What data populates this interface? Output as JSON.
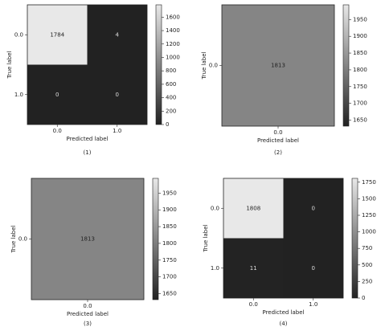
{
  "chart_data": [
    {
      "type": "heatmap",
      "caption": "(1)",
      "x_label": "Predicted label",
      "y_label": "True label",
      "x_categories": [
        "0.0",
        "1.0"
      ],
      "y_categories": [
        "0.0",
        "1.0"
      ],
      "values": [
        [
          1784,
          4
        ],
        [
          0,
          0
        ]
      ],
      "colorbar_lim": [
        0,
        1784
      ],
      "colorbar_ticks": [
        0,
        200,
        400,
        600,
        800,
        1000,
        1200,
        1400,
        1600
      ],
      "cmap": [
        "#222222",
        "#e8e8e8"
      ]
    },
    {
      "type": "heatmap",
      "caption": "(2)",
      "x_label": "Predicted label",
      "y_label": "True label",
      "x_categories": [
        "0.0"
      ],
      "y_categories": [
        "0.0"
      ],
      "values": [
        [
          1813
        ]
      ],
      "colorbar_lim": [
        1632,
        1994
      ],
      "colorbar_ticks": [
        1650,
        1700,
        1750,
        1800,
        1850,
        1900,
        1950
      ],
      "cmap": [
        "#222222",
        "#e8e8e8"
      ]
    },
    {
      "type": "heatmap",
      "caption": "(3)",
      "x_label": "Predicted label",
      "y_label": "True label",
      "x_categories": [
        "0.0"
      ],
      "y_categories": [
        "0.0"
      ],
      "values": [
        [
          1813
        ]
      ],
      "colorbar_lim": [
        1632,
        1994
      ],
      "colorbar_ticks": [
        1650,
        1700,
        1750,
        1800,
        1850,
        1900,
        1950
      ],
      "cmap": [
        "#222222",
        "#e8e8e8"
      ]
    },
    {
      "type": "heatmap",
      "caption": "(4)",
      "x_label": "Predicted label",
      "y_label": "True label",
      "x_categories": [
        "0.0",
        "1.0"
      ],
      "y_categories": [
        "0.0",
        "1.0"
      ],
      "values": [
        [
          1808,
          0
        ],
        [
          11,
          0
        ]
      ],
      "colorbar_lim": [
        0,
        1808
      ],
      "colorbar_ticks": [
        0,
        250,
        500,
        750,
        1000,
        1250,
        1500,
        1750
      ],
      "cmap": [
        "#222222",
        "#e8e8e8"
      ]
    }
  ]
}
